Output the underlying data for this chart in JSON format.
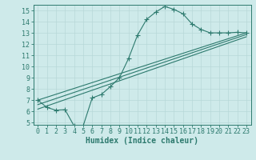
{
  "main_line_x": [
    0,
    1,
    2,
    3,
    4,
    5,
    6,
    7,
    8,
    9,
    10,
    11,
    12,
    13,
    14,
    15,
    16,
    17,
    18,
    19,
    20,
    21,
    22,
    23
  ],
  "main_line_y": [
    7.0,
    6.35,
    6.1,
    6.15,
    4.7,
    4.7,
    7.2,
    7.5,
    8.2,
    9.0,
    10.7,
    12.8,
    14.2,
    14.85,
    15.35,
    15.1,
    14.7,
    13.8,
    13.3,
    13.0,
    13.0,
    13.0,
    13.05,
    13.0
  ],
  "line2_x": [
    0,
    23
  ],
  "line2_y": [
    7.0,
    13.0
  ],
  "line3_x": [
    0,
    23
  ],
  "line3_y": [
    6.6,
    12.85
  ],
  "line4_x": [
    0,
    23
  ],
  "line4_y": [
    6.2,
    12.65
  ],
  "color": "#2d7a6e",
  "bg_color": "#ceeaea",
  "grid_color": "#b8d8d8",
  "xlabel": "Humidex (Indice chaleur)",
  "xlim": [
    -0.5,
    23.5
  ],
  "ylim": [
    4.8,
    15.5
  ],
  "yticks": [
    5,
    6,
    7,
    8,
    9,
    10,
    11,
    12,
    13,
    14,
    15
  ],
  "xticks": [
    0,
    1,
    2,
    3,
    4,
    5,
    6,
    7,
    8,
    9,
    10,
    11,
    12,
    13,
    14,
    15,
    16,
    17,
    18,
    19,
    20,
    21,
    22,
    23
  ],
  "marker": "+",
  "marker_size": 4,
  "linewidth": 0.8,
  "tick_font_size": 6,
  "label_font_size": 7
}
